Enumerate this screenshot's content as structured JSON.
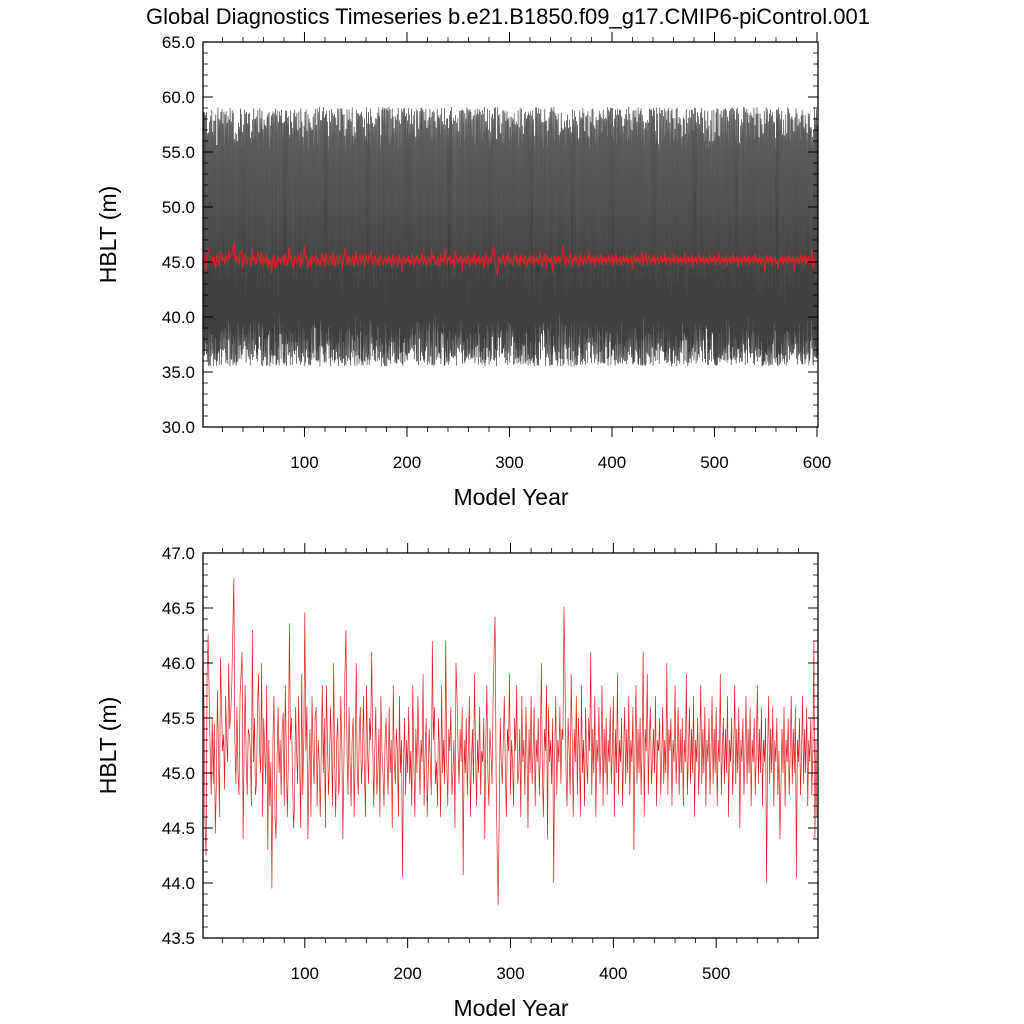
{
  "title": "Global Diagnostics Timeseries b.e21.B1850.f09_g17.CMIP6-piControl.001",
  "colors": {
    "monthly": "#000000",
    "annual": "#e02020",
    "frame": "#000000"
  },
  "chart_data": [
    {
      "type": "line",
      "xlabel": "Model Year",
      "ylabel": "HBLT (m)",
      "xlim": [
        1,
        601
      ],
      "ylim": [
        30.0,
        65.0
      ],
      "xticks": [
        100,
        200,
        300,
        400,
        500,
        600
      ],
      "xtick_labels": [
        "100",
        "200",
        "300",
        "400",
        "500",
        "600"
      ],
      "yticks": [
        30.0,
        35.0,
        40.0,
        45.0,
        50.0,
        55.0,
        60.0,
        65.0
      ],
      "ytick_labels": [
        "30.0",
        "35.0",
        "40.0",
        "45.0",
        "50.0",
        "55.0",
        "60.0",
        "65.0"
      ],
      "series": [
        {
          "kind": "monthly",
          "color": "#000000",
          "cycle_min": 38.0,
          "cycle_max": 57.5,
          "mean": 42.0,
          "overall_min": 34.5,
          "overall_max": 60.5
        },
        {
          "kind": "annual_mean",
          "color": "#e02020",
          "source": "annual"
        }
      ]
    },
    {
      "type": "line",
      "xlabel": "Model Year",
      "ylabel": "HBLT (m)",
      "xlim": [
        1,
        599
      ],
      "ylim": [
        43.5,
        47.0
      ],
      "xticks": [
        100,
        200,
        300,
        400,
        500
      ],
      "xtick_labels": [
        "100",
        "200",
        "300",
        "400",
        "500"
      ],
      "yticks": [
        43.5,
        44.0,
        44.5,
        45.0,
        45.5,
        46.0,
        46.5,
        47.0
      ],
      "ytick_labels": [
        "43.5",
        "44.0",
        "44.5",
        "45.0",
        "45.5",
        "46.0",
        "46.5",
        "47.0"
      ],
      "series": [
        {
          "kind": "annual_mean",
          "color": "#e02020",
          "x_start": 1,
          "values": [
            46.1,
            45.6,
            44.5,
            44.25,
            45.9,
            46.26,
            45.7,
            45.2,
            44.8,
            45.5,
            44.9,
            45.45,
            44.45,
            44.9,
            45.75,
            45.2,
            44.6,
            46.05,
            45.6,
            45.2,
            45.35,
            44.85,
            45.7,
            45.3,
            45.1,
            46.0,
            45.4,
            45.55,
            45.8,
            46.3,
            46.77,
            45.3,
            44.9,
            45.6,
            45.0,
            44.8,
            45.7,
            45.9,
            46.1,
            44.4,
            45.25,
            45.8,
            45.1,
            44.8,
            45.4,
            45.35,
            45.2,
            44.7,
            46.3,
            45.1,
            45.5,
            44.8,
            44.9,
            45.6,
            45.9,
            45.2,
            45.0,
            46.0,
            44.6,
            45.5,
            45.2,
            44.9,
            45.8,
            44.3,
            45.3,
            44.7,
            45.1,
            43.95,
            45.3,
            45.7,
            44.6,
            44.4,
            45.1,
            45.6,
            45.0,
            45.3,
            44.8,
            45.4,
            45.55,
            44.7,
            45.8,
            45.2,
            44.6,
            45.1,
            46.36,
            45.3,
            45.5,
            45.0,
            44.5,
            44.7,
            45.6,
            45.2,
            44.9,
            45.7,
            45.1,
            44.5,
            45.9,
            44.8,
            45.3,
            46.46,
            45.2,
            45.6,
            44.4,
            45.0,
            45.4,
            44.6,
            45.7,
            45.2,
            44.9,
            45.5,
            45.6,
            44.7,
            45.3,
            45.1,
            44.6,
            45.2,
            45.8,
            45.0,
            45.5,
            44.5,
            45.8,
            45.3,
            44.8,
            45.1,
            45.6,
            45.2,
            44.7,
            46.0,
            45.1,
            44.6,
            45.3,
            45.5,
            44.8,
            45.0,
            45.7,
            45.2,
            44.4,
            45.1,
            45.9,
            46.3,
            45.2,
            44.8,
            45.6,
            45.1,
            44.7,
            45.3,
            45.5,
            44.6,
            45.2,
            46.0,
            45.0,
            44.8,
            45.4,
            45.6,
            44.9,
            45.1,
            45.7,
            45.0,
            44.6,
            45.8,
            45.2,
            44.9,
            45.5,
            45.3,
            46.1,
            45.3,
            44.7,
            45.2,
            45.6,
            44.8,
            45.0,
            45.4,
            44.6,
            45.7,
            45.2,
            45.0,
            44.7,
            45.3,
            45.5,
            45.1,
            44.8,
            45.6,
            45.0,
            45.3,
            44.5,
            45.8,
            45.1,
            44.9,
            45.4,
            45.2,
            44.6,
            45.7,
            45.0,
            45.3,
            44.05,
            45.1,
            45.5,
            44.8,
            45.3,
            45.0,
            45.6,
            44.9,
            45.2,
            44.7,
            45.8,
            45.1,
            44.6,
            45.4,
            45.0,
            45.7,
            45.2,
            44.8,
            45.3,
            45.1,
            45.9,
            44.7,
            45.2,
            45.5,
            44.6,
            45.0,
            45.4,
            45.1,
            44.8,
            46.2,
            45.3,
            45.6,
            44.9,
            45.1,
            44.7,
            45.5,
            45.2,
            44.6,
            45.8,
            45.0,
            45.3,
            44.9,
            46.2,
            45.1,
            44.7,
            45.4,
            45.2,
            45.6,
            44.8,
            45.0,
            45.3,
            44.5,
            46.0,
            45.7,
            45.2,
            44.9,
            45.4,
            45.1,
            45.6,
            44.07,
            45.3,
            45.0,
            45.5,
            44.8,
            45.2,
            45.7,
            44.6,
            45.1,
            45.4,
            44.9,
            45.9,
            45.2,
            44.7,
            45.3,
            45.0,
            45.6,
            44.8,
            45.2,
            45.1,
            45.5,
            44.4,
            45.3,
            45.8,
            45.0,
            44.7,
            45.4,
            45.2,
            44.9,
            45.6,
            46.1,
            46.42,
            45.0,
            44.3,
            43.8,
            44.6,
            45.5,
            45.1,
            44.9,
            45.3,
            45.7,
            45.0,
            44.6,
            45.4,
            45.2,
            45.9,
            44.8,
            45.3,
            45.1,
            44.7,
            45.5,
            45.2,
            45.8,
            44.9,
            45.0,
            45.4,
            44.6,
            45.7,
            45.1,
            45.3,
            44.8,
            45.6,
            45.2,
            44.5,
            45.4,
            45.0,
            45.7,
            44.9,
            45.2,
            45.6,
            44.7,
            45.3,
            45.1,
            45.5,
            44.8,
            45.2,
            46.0,
            45.0,
            44.6,
            45.4,
            45.2,
            45.8,
            44.4,
            45.6,
            45.1,
            45.3,
            44.9,
            45.5,
            44.0,
            45.2,
            45.7,
            44.8,
            45.3,
            45.1,
            45.6,
            44.9,
            45.4,
            45.3,
            46.51,
            45.9,
            45.0,
            44.7,
            45.5,
            45.2,
            44.8,
            45.9,
            45.3,
            44.6,
            45.4,
            45.1,
            45.7,
            44.8,
            45.5,
            45.2,
            44.6,
            45.8,
            45.0,
            45.3,
            44.7,
            45.6,
            45.1,
            44.9,
            45.5,
            45.2,
            46.1,
            44.8,
            45.4,
            45.0,
            45.7,
            44.6,
            45.3,
            45.1,
            45.6,
            44.9,
            45.2,
            45.8,
            44.7,
            45.4,
            45.0,
            45.5,
            44.8,
            45.3,
            45.1,
            45.6,
            44.9,
            45.2,
            45.7,
            44.6,
            45.4,
            45.0,
            45.9,
            44.8,
            45.3,
            45.1,
            45.5,
            44.7,
            45.2,
            45.6,
            44.9,
            45.4,
            45.0,
            45.7,
            44.8,
            45.3,
            45.1,
            45.6,
            44.3,
            45.2,
            45.8,
            44.9,
            45.4,
            45.0,
            45.5,
            44.8,
            45.3,
            46.1,
            44.6,
            45.4,
            45.2,
            45.9,
            44.8,
            45.3,
            45.6,
            44.9,
            45.1,
            45.4,
            45.0,
            45.7,
            44.7,
            45.3,
            45.2,
            45.5,
            44.8,
            45.1,
            45.6,
            44.9,
            45.3,
            45.0,
            46.0,
            44.8,
            45.4,
            45.2,
            45.5,
            44.7,
            45.3,
            45.1,
            45.8,
            44.9,
            45.2,
            45.6,
            44.8,
            45.4,
            45.0,
            45.5,
            44.7,
            45.3,
            45.1,
            45.9,
            44.8,
            45.2,
            45.6,
            44.9,
            45.4,
            45.0,
            45.7,
            44.6,
            45.3,
            45.1,
            45.5,
            44.8,
            45.2,
            45.8,
            44.9,
            45.4,
            45.0,
            45.6,
            44.7,
            45.3,
            45.1,
            45.5,
            44.8,
            45.2,
            45.7,
            44.9,
            45.4,
            45.0,
            45.6,
            44.7,
            45.3,
            45.1,
            45.9,
            44.8,
            45.2,
            45.5,
            44.9,
            45.4,
            45.0,
            45.7,
            44.6,
            45.3,
            45.1,
            45.5,
            44.8,
            45.2,
            45.8,
            44.9,
            45.4,
            45.0,
            45.6,
            44.5,
            45.3,
            45.1,
            45.5,
            44.8,
            45.2,
            45.7,
            44.9,
            45.4,
            45.0,
            45.6,
            44.7,
            45.3,
            45.1,
            45.5,
            44.8,
            45.2,
            45.8,
            44.9,
            45.4,
            45.0,
            45.6,
            44.7,
            45.3,
            45.1,
            45.5,
            44.0,
            45.2,
            45.7,
            44.9,
            45.4,
            45.0,
            45.6,
            44.7,
            45.3,
            45.1,
            45.5,
            44.8,
            45.2,
            44.4,
            44.9,
            45.4,
            45.0,
            45.6,
            44.7,
            45.3,
            45.1,
            45.5,
            44.8,
            45.2,
            45.7,
            44.9,
            45.4,
            45.0,
            45.6,
            44.05,
            45.3,
            45.1,
            45.5,
            44.8,
            45.2,
            45.7,
            44.9,
            45.4,
            45.0,
            45.6,
            44.7,
            45.3,
            45.1,
            45.5,
            44.8,
            45.2,
            46.2,
            44.4,
            45.3,
            44.6
          ]
        }
      ]
    }
  ]
}
